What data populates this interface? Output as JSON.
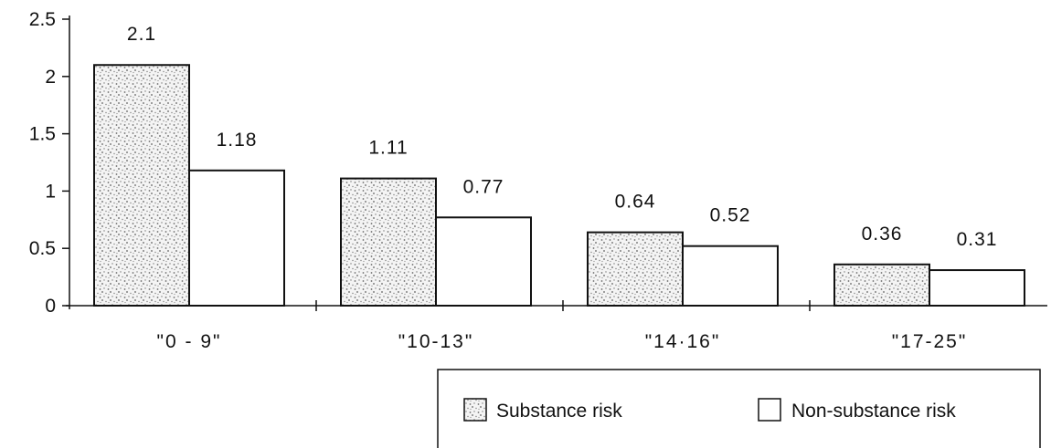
{
  "chart_data": {
    "type": "bar",
    "title": "",
    "xlabel": "",
    "ylabel": "",
    "categories": [
      "\"0 - 9\"",
      "\"10-13\"",
      "\"14·16\"",
      "\"17-25\""
    ],
    "series": [
      {
        "name": "Substance risk",
        "values": [
          2.1,
          1.11,
          0.64,
          0.36
        ],
        "value_labels": [
          "2.1",
          "1.11",
          "0.64",
          "0.36"
        ],
        "fill": "stippled-gray"
      },
      {
        "name": "Non-substance risk",
        "values": [
          1.18,
          0.77,
          0.52,
          0.31
        ],
        "value_labels": [
          "1.18",
          "0.77",
          "0.52",
          "0.31"
        ],
        "fill": "white"
      }
    ],
    "y_ticks": [
      "0",
      "0.5",
      "1",
      "1.5",
      "2",
      "2.5"
    ],
    "ylim": [
      0,
      2.5
    ],
    "grid": false,
    "legend_position": "bottom-right",
    "colors": {
      "axis": "#111111",
      "bar_outline": "#111111",
      "stipple_background": "#f4f4f4",
      "stipple_dots": "#6b6b6b",
      "plain_fill": "#ffffff"
    }
  }
}
